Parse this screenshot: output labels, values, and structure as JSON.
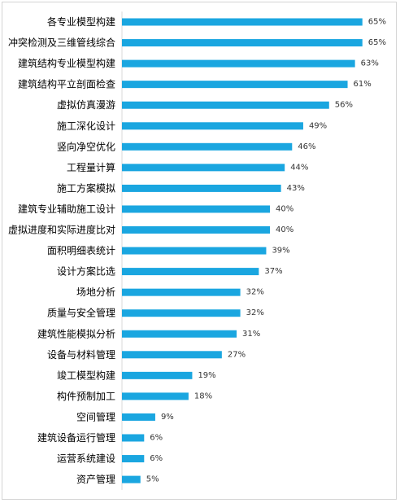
{
  "chart_data": {
    "type": "bar",
    "orientation": "horizontal",
    "title": "",
    "xlabel": "",
    "ylabel": "",
    "categories": [
      "各专业模型构建",
      "冲突检测及三维管线综合",
      "建筑结构专业模型构建",
      "建筑结构平立剖面检查",
      "虚拟仿真漫游",
      "施工深化设计",
      "竖向净空优化",
      "工程量计算",
      "施工方案模拟",
      "建筑专业辅助施工设计",
      "虚拟进度和实际进度比对",
      "面积明细表统计",
      "设计方案比选",
      "场地分析",
      "质量与安全管理",
      "建筑性能模拟分析",
      "设备与材料管理",
      "竣工模型构建",
      "构件预制加工",
      "空间管理",
      "建筑设备运行管理",
      "运营系统建设",
      "资产管理"
    ],
    "values": [
      65,
      65,
      63,
      61,
      56,
      49,
      46,
      44,
      43,
      40,
      40,
      39,
      37,
      32,
      32,
      31,
      27,
      19,
      18,
      9,
      6,
      6,
      5
    ],
    "value_labels": [
      "65%",
      "65%",
      "63%",
      "61%",
      "56%",
      "49%",
      "46%",
      "44%",
      "43%",
      "40%",
      "40%",
      "39%",
      "37%",
      "32%",
      "32%",
      "31%",
      "27%",
      "19%",
      "18%",
      "9%",
      "6%",
      "6%",
      "5%"
    ],
    "unit": "%",
    "xlim": [
      0,
      70
    ],
    "grid": false,
    "legend": "none",
    "bar_color": "#1aa6e0"
  }
}
